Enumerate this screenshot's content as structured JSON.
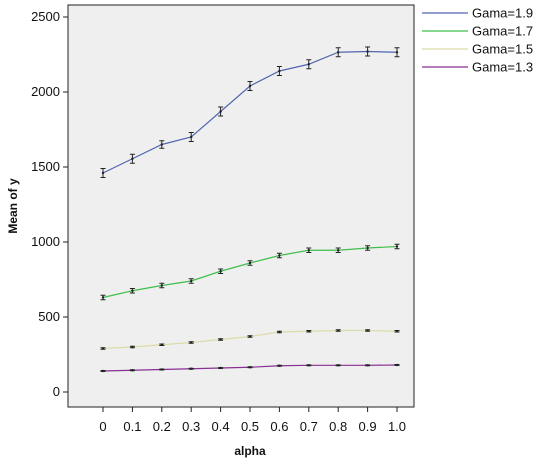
{
  "chart_data": {
    "type": "line",
    "xlabel": "alpha",
    "ylabel": "Mean of y",
    "categories": [
      "0",
      "0.1",
      "0.2",
      "0.3",
      "0.4",
      "0.5",
      "0.6",
      "0.7",
      "0.8",
      "0.9",
      "1.0"
    ],
    "yticks": [
      "0",
      "500",
      "1000",
      "1500",
      "2000",
      "2500"
    ],
    "ylim": [
      -100,
      2580
    ],
    "grid": false,
    "error_bars": true,
    "legend_position": "right",
    "background_color": "#efefef",
    "series": [
      {
        "name": "Gama=1.9",
        "color": "#5166b0",
        "values": [
          1460,
          1555,
          1650,
          1700,
          1870,
          2040,
          2140,
          2185,
          2265,
          2270,
          2265
        ],
        "error": [
          30,
          30,
          25,
          30,
          30,
          30,
          30,
          30,
          30,
          30,
          30
        ]
      },
      {
        "name": "Gama=1.7",
        "color": "#3fbf4b",
        "values": [
          630,
          675,
          710,
          740,
          805,
          860,
          910,
          945,
          945,
          960,
          970
        ],
        "error": [
          15,
          15,
          15,
          15,
          15,
          15,
          15,
          15,
          15,
          15,
          15
        ]
      },
      {
        "name": "Gama=1.5",
        "color": "#dcdcaa",
        "values": [
          290,
          300,
          315,
          330,
          350,
          370,
          400,
          405,
          410,
          410,
          405
        ],
        "error": [
          5,
          5,
          5,
          5,
          5,
          5,
          5,
          5,
          5,
          5,
          5
        ]
      },
      {
        "name": "Gama=1.3",
        "color": "#8a2f93",
        "values": [
          140,
          145,
          150,
          155,
          160,
          165,
          175,
          178,
          178,
          178,
          180
        ],
        "error": [
          3,
          3,
          3,
          3,
          3,
          3,
          3,
          3,
          3,
          3,
          3
        ]
      }
    ]
  }
}
